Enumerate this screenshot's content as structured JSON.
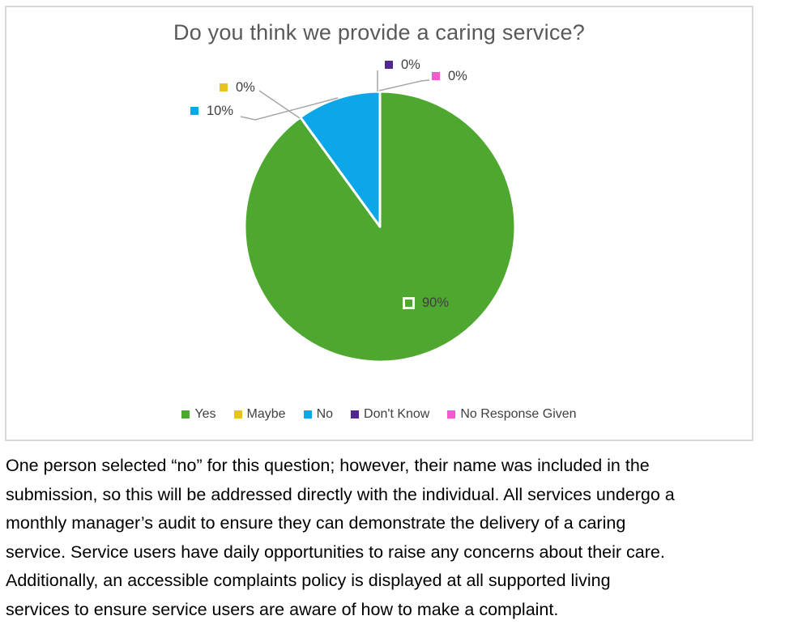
{
  "chart": {
    "title": "Do you think we provide a caring service?",
    "colors": {
      "yes": "#4EA72E",
      "maybe": "#E7C31B",
      "no": "#0BA7E8",
      "dont_know": "#512991",
      "no_response": "#F25ACD",
      "leader_line": "#A6A6A6",
      "border": "#D9D9D9",
      "title_text": "#595959",
      "label_text": "#404040"
    },
    "data_labels": {
      "yes": "90%",
      "maybe": "0%",
      "no": "10%",
      "dont_know": "0%",
      "no_response": "0%"
    },
    "legend": [
      {
        "label": "Yes",
        "color_key": "yes"
      },
      {
        "label": "Maybe",
        "color_key": "maybe"
      },
      {
        "label": "No",
        "color_key": "no"
      },
      {
        "label": "Don't Know",
        "color_key": "dont_know"
      },
      {
        "label": "No Response Given",
        "color_key": "no_response"
      }
    ]
  },
  "chart_data": {
    "type": "pie",
    "title": "Do you think we provide a caring service?",
    "categories": [
      "Yes",
      "Maybe",
      "No",
      "Don't Know",
      "No Response Given"
    ],
    "values": [
      90,
      0,
      10,
      0,
      0
    ],
    "value_unit": "percent",
    "data_labels": [
      "90%",
      "0%",
      "10%",
      "0%",
      "0%"
    ],
    "slice_colors": [
      "#4EA72E",
      "#E7C31B",
      "#0BA7E8",
      "#512991",
      "#F25ACD"
    ],
    "legend_position": "bottom",
    "start_angle_deg": 0,
    "direction": "clockwise"
  },
  "commentary": {
    "lines": [
      "One person selected “no” for this question; however, their name was included in the",
      "submission, so this will be addressed directly with the individual. All services undergo a",
      "monthly manager’s audit to ensure they can demonstrate the delivery of a caring",
      "service. Service users have daily opportunities to raise any concerns about their care.",
      "Additionally, an accessible complaints policy is displayed at all supported living",
      "services to ensure service users are aware of how to make a complaint."
    ]
  }
}
